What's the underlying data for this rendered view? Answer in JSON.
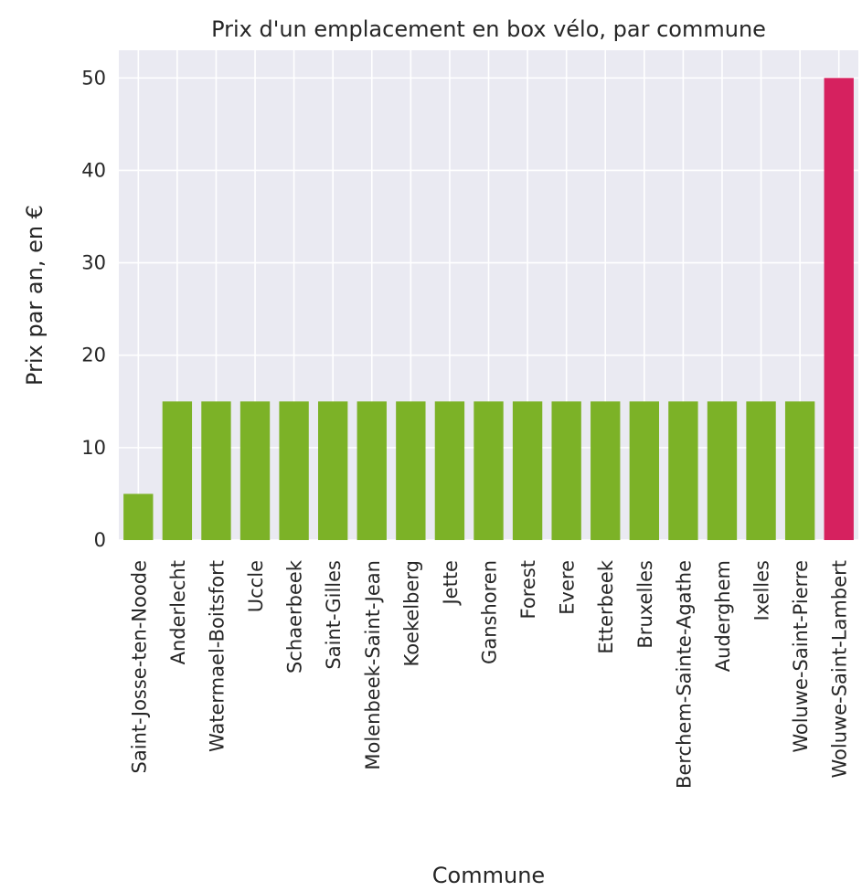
{
  "chart_data": {
    "type": "bar",
    "title": "Prix d'un emplacement en box vélo, par commune",
    "xlabel": "Commune",
    "ylabel": "Prix par an, en €",
    "categories": [
      "Saint-Josse-ten-Noode",
      "Anderlecht",
      "Watermael-Boitsfort",
      "Uccle",
      "Schaerbeek",
      "Saint-Gilles",
      "Molenbeek-Saint-Jean",
      "Koekelberg",
      "Jette",
      "Ganshoren",
      "Forest",
      "Evere",
      "Etterbeek",
      "Bruxelles",
      "Berchem-Sainte-Agathe",
      "Auderghem",
      "Ixelles",
      "Woluwe-Saint-Pierre",
      "Woluwe-Saint-Lambert"
    ],
    "values": [
      5,
      15,
      15,
      15,
      15,
      15,
      15,
      15,
      15,
      15,
      15,
      15,
      15,
      15,
      15,
      15,
      15,
      15,
      50
    ],
    "highlight_index": 18,
    "ylim": [
      0,
      53
    ],
    "yticks": [
      0,
      10,
      20,
      30,
      40,
      50
    ],
    "grid": true,
    "colors": {
      "bar": "#7cb227",
      "highlight": "#d6215f",
      "plot_background": "#eaeaf2",
      "grid": "#ffffff",
      "text": "#262626"
    }
  }
}
